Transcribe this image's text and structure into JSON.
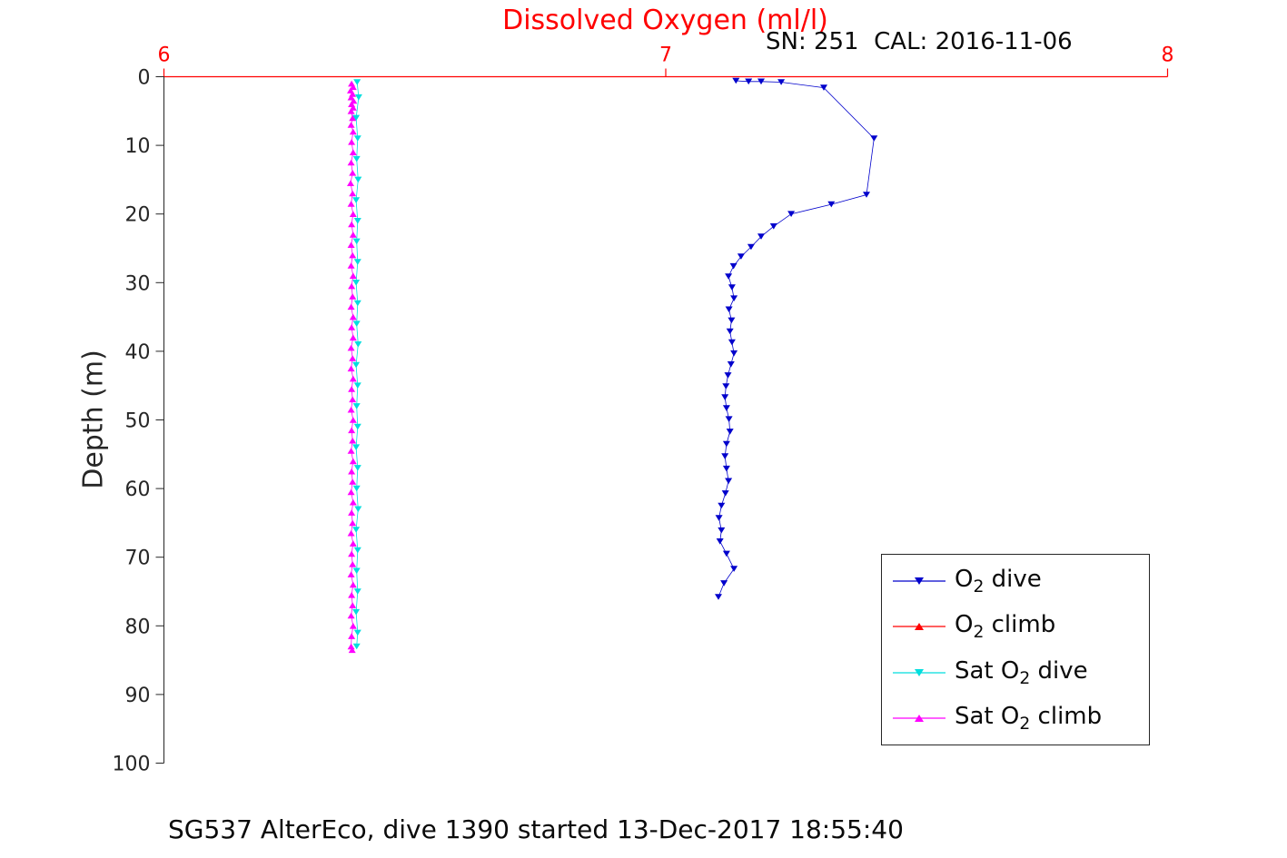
{
  "figure": {
    "title": "Dissolved Oxygen (ml/l)",
    "annotation": "SN: 251  CAL: 2016-11-06",
    "ylabel": "Depth (m)",
    "caption": "SG537 AlterEco, dive 1390 started 13-Dec-2017 18:55:40"
  },
  "colors": {
    "title": "#ff0000",
    "top_axis": "#ff0000",
    "axis_text": "#262626",
    "text": "#0a0a0a",
    "o2_dive": "#0000cc",
    "o2_climb": "#ff0000",
    "sat_o2_dive": "#00dede",
    "sat_o2_climb": "#ff00ff"
  },
  "chart_data": {
    "type": "scatter",
    "title": "Dissolved Oxygen (ml/l)",
    "annotation": "SN: 251  CAL: 2016-11-06",
    "xlabel": "",
    "ylabel": "Depth (m)",
    "caption": "SG537 AlterEco, dive 1390 started 13-Dec-2017 18:55:40",
    "x_axis_position": "top",
    "y_inverted": true,
    "grid": false,
    "xlim": [
      6,
      8
    ],
    "ylim": [
      0,
      100
    ],
    "x_ticks": [
      6,
      7,
      8
    ],
    "y_ticks": [
      0,
      10,
      20,
      30,
      40,
      50,
      60,
      70,
      80,
      90,
      100
    ],
    "legend_location": "lower-right-inside",
    "legend": [
      {
        "key": "o2-dive",
        "pre": "O",
        "sub": "2",
        "post": " dive",
        "marker": "down",
        "color": "#0000cc"
      },
      {
        "key": "o2-climb",
        "pre": "O",
        "sub": "2",
        "post": " climb",
        "marker": "up",
        "color": "#ff0000"
      },
      {
        "key": "sat-o2-dive",
        "pre": "Sat O",
        "sub": "2",
        "post": " dive",
        "marker": "down",
        "color": "#00dede"
      },
      {
        "key": "sat-o2-climb",
        "pre": "Sat O",
        "sub": "2",
        "post": " climb",
        "marker": "up",
        "color": "#ff00ff"
      }
    ],
    "series": [
      {
        "key": "o2-dive",
        "name": "O2 dive",
        "marker": "down",
        "color": "#0000cc",
        "line": true,
        "points": [
          [
            7.14,
            0.6
          ],
          [
            7.165,
            0.7
          ],
          [
            7.19,
            0.7
          ],
          [
            7.23,
            0.8
          ],
          [
            7.315,
            1.6
          ],
          [
            7.415,
            9.0
          ],
          [
            7.4,
            17.2
          ],
          [
            7.33,
            18.6
          ],
          [
            7.25,
            20.0
          ],
          [
            7.215,
            21.8
          ],
          [
            7.19,
            23.3
          ],
          [
            7.17,
            24.8
          ],
          [
            7.15,
            26.2
          ],
          [
            7.135,
            27.6
          ],
          [
            7.125,
            29.1
          ],
          [
            7.132,
            30.7
          ],
          [
            7.136,
            32.3
          ],
          [
            7.126,
            33.9
          ],
          [
            7.131,
            35.5
          ],
          [
            7.128,
            37.1
          ],
          [
            7.132,
            38.7
          ],
          [
            7.136,
            40.3
          ],
          [
            7.13,
            41.9
          ],
          [
            7.124,
            43.5
          ],
          [
            7.12,
            45.1
          ],
          [
            7.118,
            46.7
          ],
          [
            7.121,
            48.3
          ],
          [
            7.126,
            49.9
          ],
          [
            7.128,
            51.7
          ],
          [
            7.121,
            53.5
          ],
          [
            7.118,
            55.3
          ],
          [
            7.121,
            57.1
          ],
          [
            7.125,
            58.9
          ],
          [
            7.119,
            60.7
          ],
          [
            7.111,
            62.5
          ],
          [
            7.106,
            64.3
          ],
          [
            7.111,
            66.1
          ],
          [
            7.108,
            67.7
          ],
          [
            7.121,
            69.5
          ],
          [
            7.136,
            71.7
          ],
          [
            7.116,
            73.8
          ],
          [
            7.105,
            75.8
          ]
        ]
      },
      {
        "key": "o2-climb",
        "name": "O2 climb",
        "marker": "up",
        "color": "#ff0000",
        "line": true,
        "points": []
      },
      {
        "key": "sat-o2-dive",
        "name": "Sat O2 dive",
        "marker": "down",
        "color": "#00dede",
        "line": true,
        "points": [
          [
            6.385,
            0.8
          ],
          [
            6.388,
            3.0
          ],
          [
            6.383,
            6.0
          ],
          [
            6.386,
            9.0
          ],
          [
            6.384,
            12.0
          ],
          [
            6.387,
            15.0
          ],
          [
            6.383,
            18.0
          ],
          [
            6.386,
            21.0
          ],
          [
            6.384,
            24.0
          ],
          [
            6.386,
            27.0
          ],
          [
            6.383,
            30.0
          ],
          [
            6.386,
            33.0
          ],
          [
            6.384,
            36.0
          ],
          [
            6.387,
            39.0
          ],
          [
            6.383,
            42.0
          ],
          [
            6.386,
            45.0
          ],
          [
            6.384,
            48.0
          ],
          [
            6.386,
            51.0
          ],
          [
            6.383,
            54.0
          ],
          [
            6.386,
            57.0
          ],
          [
            6.384,
            60.0
          ],
          [
            6.387,
            63.0
          ],
          [
            6.383,
            66.0
          ],
          [
            6.386,
            69.0
          ],
          [
            6.384,
            72.0
          ],
          [
            6.386,
            75.0
          ],
          [
            6.383,
            78.0
          ],
          [
            6.386,
            81.0
          ],
          [
            6.384,
            83.0
          ]
        ]
      },
      {
        "key": "sat-o2-climb",
        "name": "Sat O2 climb",
        "marker": "up",
        "color": "#ff00ff",
        "line": true,
        "points": [
          [
            6.374,
            1.0
          ],
          [
            6.377,
            1.5
          ],
          [
            6.372,
            2.0
          ],
          [
            6.376,
            2.5
          ],
          [
            6.373,
            3.0
          ],
          [
            6.378,
            3.5
          ],
          [
            6.374,
            4.0
          ],
          [
            6.377,
            4.5
          ],
          [
            6.373,
            5.0
          ],
          [
            6.376,
            6.0
          ],
          [
            6.373,
            7.0
          ],
          [
            6.377,
            8.0
          ],
          [
            6.374,
            9.5
          ],
          [
            6.377,
            11.0
          ],
          [
            6.373,
            12.5
          ],
          [
            6.376,
            14.0
          ],
          [
            6.372,
            15.5
          ],
          [
            6.376,
            17.0
          ],
          [
            6.373,
            18.5
          ],
          [
            6.377,
            20.0
          ],
          [
            6.374,
            21.5
          ],
          [
            6.377,
            23.0
          ],
          [
            6.373,
            24.5
          ],
          [
            6.376,
            26.0
          ],
          [
            6.373,
            27.5
          ],
          [
            6.377,
            29.0
          ],
          [
            6.374,
            30.5
          ],
          [
            6.376,
            32.0
          ],
          [
            6.373,
            33.5
          ],
          [
            6.377,
            35.0
          ],
          [
            6.374,
            36.5
          ],
          [
            6.377,
            38.0
          ],
          [
            6.373,
            39.5
          ],
          [
            6.376,
            41.0
          ],
          [
            6.373,
            42.5
          ],
          [
            6.377,
            44.0
          ],
          [
            6.374,
            45.5
          ],
          [
            6.376,
            47.0
          ],
          [
            6.373,
            48.5
          ],
          [
            6.377,
            50.0
          ],
          [
            6.374,
            51.5
          ],
          [
            6.376,
            53.0
          ],
          [
            6.373,
            54.5
          ],
          [
            6.377,
            56.0
          ],
          [
            6.374,
            57.5
          ],
          [
            6.376,
            59.0
          ],
          [
            6.373,
            60.5
          ],
          [
            6.377,
            62.0
          ],
          [
            6.374,
            63.5
          ],
          [
            6.376,
            65.0
          ],
          [
            6.373,
            66.5
          ],
          [
            6.377,
            68.0
          ],
          [
            6.374,
            69.5
          ],
          [
            6.376,
            71.0
          ],
          [
            6.373,
            72.5
          ],
          [
            6.377,
            74.0
          ],
          [
            6.374,
            75.5
          ],
          [
            6.376,
            77.0
          ],
          [
            6.373,
            78.5
          ],
          [
            6.377,
            80.0
          ],
          [
            6.374,
            81.5
          ],
          [
            6.373,
            83.0
          ],
          [
            6.375,
            83.5
          ]
        ]
      }
    ]
  }
}
